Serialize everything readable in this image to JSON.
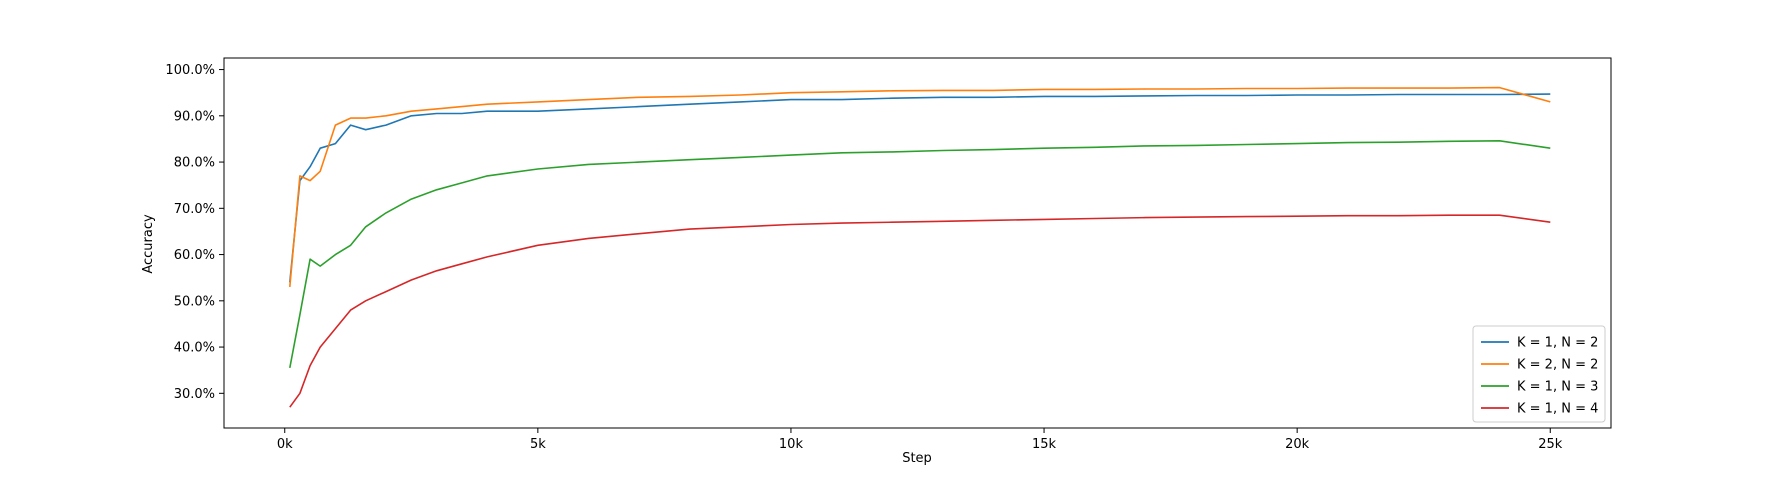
{
  "chart_data": {
    "type": "line",
    "title": "",
    "xlabel": "Step",
    "ylabel": "Accuracy",
    "xlim": [
      -1200,
      26200
    ],
    "ylim": [
      0.225,
      1.025
    ],
    "x_ticks": [
      0,
      5000,
      10000,
      15000,
      20000,
      25000
    ],
    "x_tick_labels": [
      "0k",
      "5k",
      "10k",
      "15k",
      "20k",
      "25k"
    ],
    "y_ticks": [
      0.3,
      0.4,
      0.5,
      0.6,
      0.7,
      0.8,
      0.9,
      1.0
    ],
    "y_tick_labels": [
      "30.0%",
      "40.0%",
      "50.0%",
      "60.0%",
      "70.0%",
      "80.0%",
      "90.0%",
      "100.0%"
    ],
    "grid": false,
    "legend_position": "bottom-right",
    "series": [
      {
        "name": "K = 1, N = 2",
        "color": "#1f77b4",
        "x": [
          100,
          300,
          500,
          700,
          1000,
          1300,
          1600,
          2000,
          2500,
          3000,
          3500,
          4000,
          5000,
          6000,
          7000,
          8000,
          9000,
          10000,
          11000,
          12000,
          13000,
          14000,
          15000,
          16000,
          17000,
          18000,
          19000,
          20000,
          21000,
          22000,
          23000,
          24000,
          25000
        ],
        "y": [
          0.54,
          0.76,
          0.79,
          0.83,
          0.84,
          0.88,
          0.87,
          0.88,
          0.9,
          0.905,
          0.905,
          0.91,
          0.91,
          0.915,
          0.92,
          0.925,
          0.93,
          0.935,
          0.935,
          0.938,
          0.94,
          0.94,
          0.942,
          0.942,
          0.943,
          0.944,
          0.944,
          0.945,
          0.945,
          0.946,
          0.946,
          0.946,
          0.947
        ]
      },
      {
        "name": "K = 2, N = 2",
        "color": "#ff7f0e",
        "x": [
          100,
          300,
          500,
          700,
          1000,
          1300,
          1600,
          2000,
          2500,
          3000,
          3500,
          4000,
          5000,
          6000,
          7000,
          8000,
          9000,
          10000,
          11000,
          12000,
          13000,
          14000,
          15000,
          16000,
          17000,
          18000,
          19000,
          20000,
          21000,
          22000,
          23000,
          24000,
          25000
        ],
        "y": [
          0.53,
          0.77,
          0.76,
          0.78,
          0.88,
          0.895,
          0.895,
          0.9,
          0.91,
          0.915,
          0.92,
          0.925,
          0.93,
          0.935,
          0.94,
          0.942,
          0.945,
          0.95,
          0.952,
          0.954,
          0.955,
          0.955,
          0.957,
          0.957,
          0.958,
          0.958,
          0.959,
          0.959,
          0.96,
          0.96,
          0.96,
          0.961,
          0.93
        ]
      },
      {
        "name": "K = 1, N = 3",
        "color": "#2ca02c",
        "x": [
          100,
          300,
          500,
          700,
          1000,
          1300,
          1600,
          2000,
          2500,
          3000,
          3500,
          4000,
          5000,
          6000,
          7000,
          8000,
          9000,
          10000,
          11000,
          12000,
          13000,
          14000,
          15000,
          16000,
          17000,
          18000,
          19000,
          20000,
          21000,
          22000,
          23000,
          24000,
          25000
        ],
        "y": [
          0.355,
          0.47,
          0.59,
          0.575,
          0.6,
          0.62,
          0.66,
          0.69,
          0.72,
          0.74,
          0.755,
          0.77,
          0.785,
          0.795,
          0.8,
          0.805,
          0.81,
          0.815,
          0.82,
          0.822,
          0.825,
          0.827,
          0.83,
          0.832,
          0.835,
          0.836,
          0.838,
          0.84,
          0.842,
          0.843,
          0.845,
          0.846,
          0.83
        ]
      },
      {
        "name": "K = 1, N = 4",
        "color": "#d62728",
        "x": [
          100,
          300,
          500,
          700,
          1000,
          1300,
          1600,
          2000,
          2500,
          3000,
          3500,
          4000,
          5000,
          6000,
          7000,
          8000,
          9000,
          10000,
          11000,
          12000,
          13000,
          14000,
          15000,
          16000,
          17000,
          18000,
          19000,
          20000,
          21000,
          22000,
          23000,
          24000,
          25000
        ],
        "y": [
          0.27,
          0.3,
          0.36,
          0.4,
          0.44,
          0.48,
          0.5,
          0.52,
          0.545,
          0.565,
          0.58,
          0.595,
          0.62,
          0.635,
          0.645,
          0.655,
          0.66,
          0.665,
          0.668,
          0.67,
          0.672,
          0.674,
          0.676,
          0.678,
          0.68,
          0.681,
          0.682,
          0.683,
          0.684,
          0.684,
          0.685,
          0.685,
          0.67
        ]
      }
    ]
  }
}
